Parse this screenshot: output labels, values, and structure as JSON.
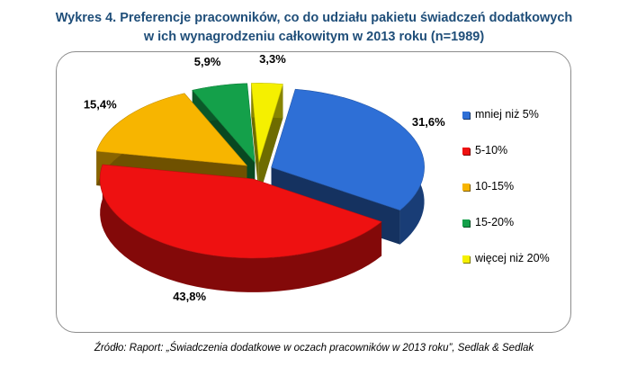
{
  "title_line1": "Wykres 4. Preferencje pracowników, co do udziału pakietu świadczeń dodatkowych",
  "title_line2": "w ich wynagrodzeniu całkowitym w 2013 roku (n=1989)",
  "source": "Źródło: Raport: „Świadczenia dodatkowe w oczach pracowników w 2013 roku”, Sedlak & Sedlak",
  "chart_data": {
    "type": "pie",
    "three_d": true,
    "exploded": true,
    "legend_position": "right",
    "slices": [
      {
        "category": "mniej niż 5%",
        "value": 31.6,
        "label": "31,6%",
        "color": "#2e6fd6"
      },
      {
        "category": "5-10%",
        "value": 43.8,
        "label": "43,8%",
        "color": "#ee1111"
      },
      {
        "category": "10-15%",
        "value": 15.4,
        "label": "15,4%",
        "color": "#f7b500"
      },
      {
        "category": "15-20%",
        "value": 5.9,
        "label": "5,9%",
        "color": "#14a04a"
      },
      {
        "category": "więcej niż 20%",
        "value": 3.3,
        "label": "3,3%",
        "color": "#f5f000"
      }
    ]
  }
}
